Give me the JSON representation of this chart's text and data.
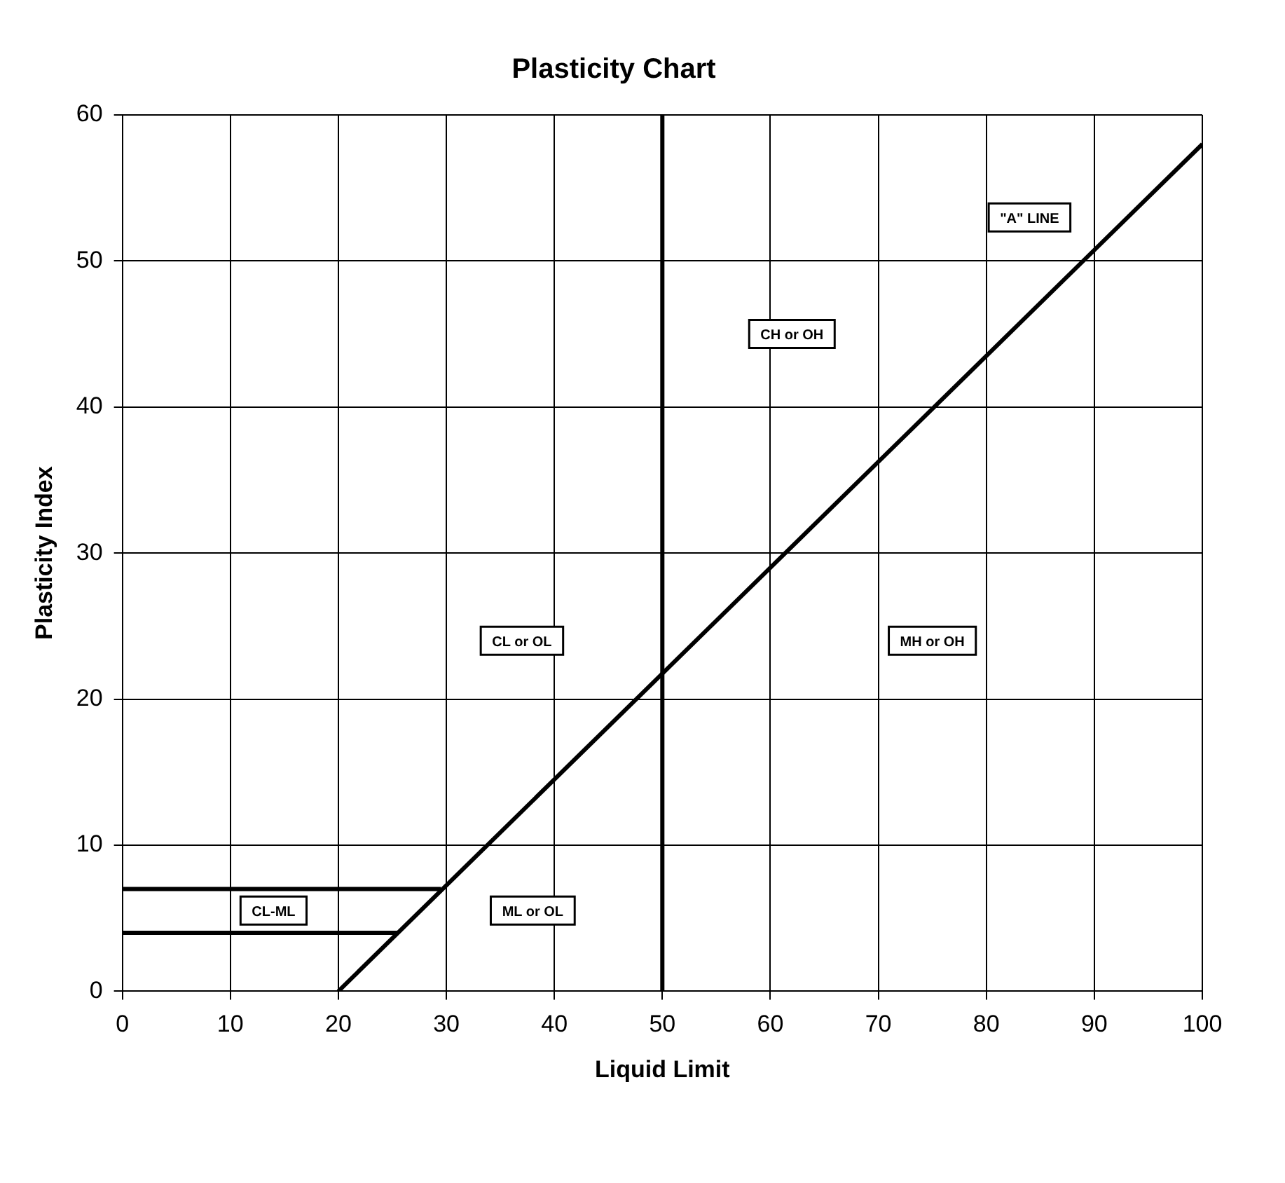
{
  "chart_data": {
    "type": "line",
    "title": "Plasticity Chart",
    "xlabel": "Liquid Limit",
    "ylabel": "Plasticity Index",
    "xlim": [
      0,
      100
    ],
    "ylim": [
      0,
      60
    ],
    "xticks": [
      0,
      10,
      20,
      30,
      40,
      50,
      60,
      70,
      80,
      90,
      100
    ],
    "yticks": [
      0,
      10,
      20,
      30,
      40,
      50,
      60
    ],
    "grid": true,
    "legend": false,
    "marker": "none",
    "line_style": "solid",
    "series": [
      {
        "color": "#000000",
        "x": [
          20,
          100
        ],
        "values": [
          0,
          58
        ]
      },
      {
        "color": "#000000",
        "x": [
          0,
          29.5
        ],
        "values": [
          7,
          7
        ]
      },
      {
        "color": "#000000",
        "x": [
          0,
          25.5
        ],
        "values": [
          4,
          4
        ]
      }
    ],
    "ref_lines": [
      {
        "axis": "x",
        "value": 50,
        "color": "#000000"
      }
    ],
    "annotations": [
      "\"A\" LINE",
      "CH or OH",
      "CL or OL",
      "MH or OH",
      "ML or OL",
      "CL-ML"
    ]
  }
}
